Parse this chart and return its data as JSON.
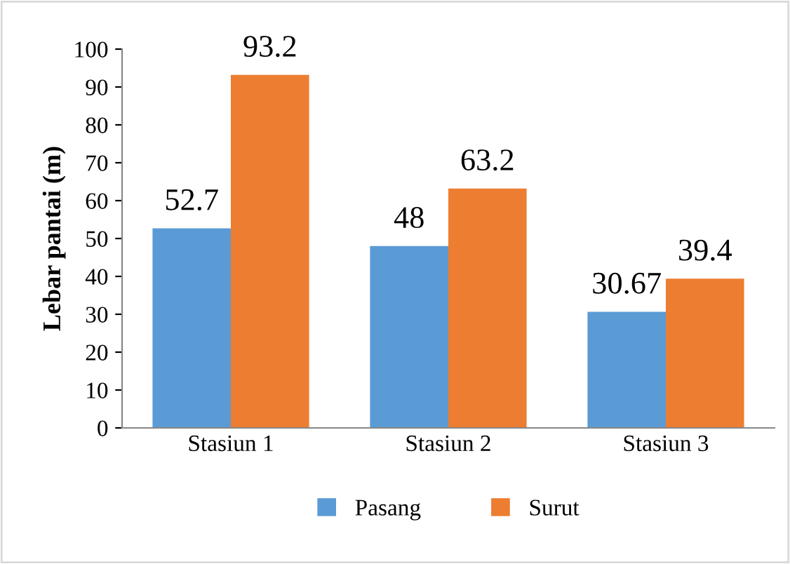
{
  "chart_data": {
    "type": "bar",
    "ylabel": "Lebar pantai (m)",
    "categories": [
      "Stasiun 1",
      "Stasiun 2",
      "Stasiun 3"
    ],
    "series": [
      {
        "name": "Pasang",
        "color": "#5b9bd5",
        "values": [
          52.7,
          48,
          30.67
        ]
      },
      {
        "name": "Surut",
        "color": "#ed7d31",
        "values": [
          93.2,
          63.2,
          39.4
        ]
      }
    ],
    "data_labels": true,
    "ylim": [
      0,
      100
    ],
    "yticks": [
      0,
      10,
      20,
      30,
      40,
      50,
      60,
      70,
      80,
      90,
      100
    ],
    "grid": false,
    "legend": "bottom"
  }
}
